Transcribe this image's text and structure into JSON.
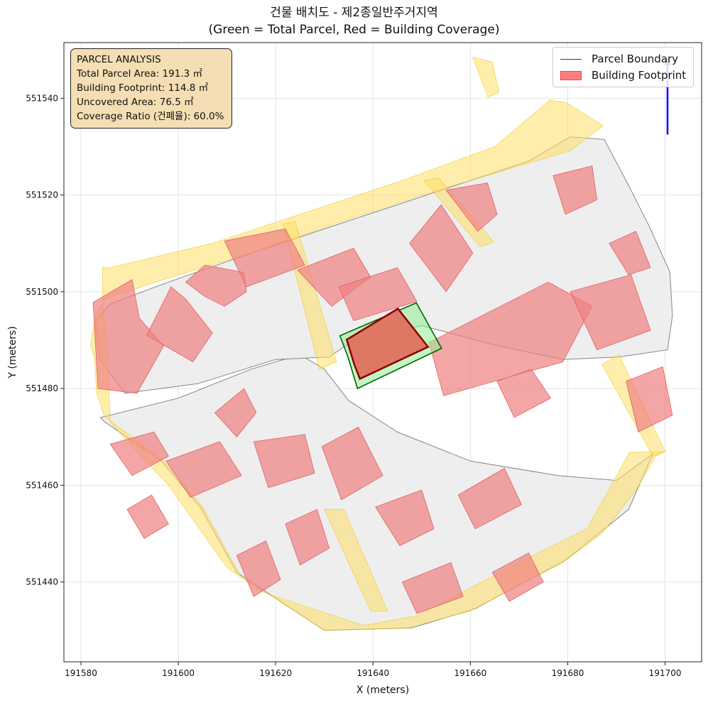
{
  "title": {
    "line1": "건물 배치도 - 제2종일반주거지역",
    "line2": "(Green = Total Parcel, Red = Building Coverage)"
  },
  "axes": {
    "xlabel": "X (meters)",
    "ylabel": "Y (meters)",
    "xlim": [
      191576.5,
      191707.5
    ],
    "ylim": [
      551423.5,
      551551.5
    ],
    "xticks": [
      191580,
      191600,
      191620,
      191640,
      191660,
      191680,
      191700
    ],
    "yticks": [
      551440,
      551460,
      551480,
      551500,
      551520,
      551540
    ],
    "grid": true
  },
  "info_box": {
    "heading": "PARCEL ANALYSIS",
    "total_parcel_area": "Total Parcel Area: 191.3 ㎡",
    "building_footprint": "Building Footprint: 114.8 ㎡",
    "uncovered_area": "Uncovered Area: 76.5 ㎡",
    "coverage_ratio": "Coverage Ratio (건폐율): 60.0%"
  },
  "legend": {
    "placement": "top-right",
    "items": [
      {
        "label": "Parcel Boundary",
        "kind": "line",
        "color": "#006400"
      },
      {
        "label": "Building Footprint",
        "kind": "patch",
        "color": "#ff0000"
      }
    ]
  },
  "colors": {
    "parcel_fill": "#90ee90",
    "parcel_edge": "#006400",
    "building_fill": "#ff0000",
    "building_edge": "#8b0000",
    "road_fill": "#ffe066",
    "neighbor_parcel_fill": "#eeeeee",
    "neighbor_parcel_edge": "#555555",
    "neighbor_building_fill": "#f08080",
    "north_arrow": "#0000ff"
  },
  "chart_data": {
    "type": "map",
    "target_parcel": {
      "area_m2": 191.3,
      "polygon": [
        [
          191633.2,
          551490.9
        ],
        [
          191648.9,
          551497.7
        ],
        [
          191654.1,
          551488.3
        ],
        [
          191636.8,
          551480.0
        ],
        [
          191635.4,
          551484.7
        ],
        [
          191634.9,
          551486.4
        ]
      ]
    },
    "target_building": {
      "area_m2": 114.8,
      "polygon": [
        [
          191634.6,
          551490.1
        ],
        [
          191645.1,
          551496.5
        ],
        [
          191651.3,
          551488.6
        ],
        [
          191637.3,
          551482.0
        ],
        [
          191636.1,
          551485.1
        ],
        [
          191635.8,
          551486.1
        ]
      ]
    },
    "roads": [
      [
        [
          191584.4,
          551505.0
        ],
        [
          191585.5,
          551504.9
        ],
        [
          191607.0,
          551510.0
        ],
        [
          191625.0,
          551516.0
        ],
        [
          191646.0,
          551523.0
        ],
        [
          191665.0,
          551530.0
        ],
        [
          191676.3,
          551539.6
        ],
        [
          191679.7,
          551539.1
        ],
        [
          191687.3,
          551534.3
        ],
        [
          191680.4,
          551529.1
        ],
        [
          191650.0,
          551520.0
        ],
        [
          191632.0,
          551514.0
        ],
        [
          191615.0,
          551508.0
        ],
        [
          191597.0,
          551502.5
        ],
        [
          191585.0,
          551498.5
        ],
        [
          191583.0,
          551495.5
        ],
        [
          191582.0,
          551489.0
        ],
        [
          191582.8,
          551486.1
        ],
        [
          191583.2,
          551479.3
        ],
        [
          191584.8,
          551474.3
        ],
        [
          191597.0,
          551465.0
        ],
        [
          191605.0,
          551455.5
        ],
        [
          191612.8,
          551441.2
        ],
        [
          191630.0,
          551430.0
        ],
        [
          191647.0,
          551430.5
        ],
        [
          191660.0,
          551434.0
        ],
        [
          191679.0,
          551444.0
        ],
        [
          191687.0,
          551450.0
        ],
        [
          191694.2,
          551459.2
        ],
        [
          191698.0,
          551466.0
        ],
        [
          191700.0,
          551467.0
        ],
        [
          191692.7,
          551466.8
        ],
        [
          191684.0,
          551451.0
        ],
        [
          191670.0,
          551444.0
        ],
        [
          191649.0,
          551433.0
        ],
        [
          191638.0,
          551431.0
        ],
        [
          191617.0,
          551438.0
        ],
        [
          191610.0,
          551443.0
        ],
        [
          191598.0,
          551460.0
        ],
        [
          191586.0,
          551473.0
        ],
        [
          191585.5,
          551486.0
        ],
        [
          191584.5,
          551498.0
        ]
      ],
      [
        [
          191621.5,
          551514.0
        ],
        [
          191624.0,
          551514.5
        ],
        [
          191632.5,
          551485.5
        ],
        [
          191629.0,
          551484.0
        ]
      ],
      [
        [
          191650.5,
          551523.0
        ],
        [
          191653.5,
          551523.5
        ],
        [
          191664.8,
          551510.3
        ],
        [
          191662.0,
          551509.3
        ]
      ],
      [
        [
          191660.5,
          551548.5
        ],
        [
          191664.5,
          551547.5
        ],
        [
          191665.9,
          551541.2
        ],
        [
          191663.6,
          551540.2
        ]
      ],
      [
        [
          191630.0,
          551455.0
        ],
        [
          191634.0,
          551455.0
        ],
        [
          191643.0,
          551434.0
        ],
        [
          191639.5,
          551434.0
        ]
      ],
      [
        [
          191687.0,
          551485.0
        ],
        [
          191690.5,
          551487.0
        ],
        [
          191700.0,
          551467.0
        ],
        [
          191697.5,
          551466.0
        ]
      ]
    ],
    "neighbor_parcels": [
      [
        [
          191584.0,
          551474.0
        ],
        [
          191600.0,
          551478.0
        ],
        [
          191615.0,
          551484.0
        ],
        [
          191625.0,
          551487.0
        ],
        [
          191630.0,
          551484.0
        ],
        [
          191635.0,
          551477.5
        ],
        [
          191645.0,
          551471.0
        ],
        [
          191660.0,
          551465.0
        ],
        [
          191678.0,
          551462.0
        ],
        [
          191690.0,
          551461.0
        ],
        [
          191697.5,
          551466.5
        ],
        [
          191692.5,
          551455.0
        ],
        [
          191679.5,
          551444.5
        ],
        [
          191661.0,
          551434.5
        ],
        [
          191648.0,
          551430.5
        ],
        [
          191630.0,
          551430.0
        ],
        [
          191612.0,
          551442.0
        ],
        [
          191604.5,
          551455.5
        ],
        [
          191596.5,
          551465.0
        ],
        [
          191585.0,
          551473.0
        ]
      ],
      [
        [
          191586.0,
          551497.5
        ],
        [
          191598.0,
          551502.0
        ],
        [
          191615.0,
          551508.0
        ],
        [
          191633.0,
          551514.0
        ],
        [
          191651.0,
          551520.0
        ],
        [
          191672.0,
          551527.0
        ],
        [
          191680.5,
          551532.0
        ],
        [
          191687.5,
          551531.5
        ],
        [
          191692.5,
          551522.0
        ],
        [
          191697.0,
          551513.0
        ],
        [
          191701.0,
          551504.0
        ],
        [
          191701.5,
          551495.0
        ],
        [
          191700.5,
          551488.0
        ],
        [
          191690.5,
          551486.5
        ],
        [
          191679.0,
          551486.0
        ],
        [
          191665.0,
          551489.0
        ],
        [
          191650.0,
          551493.0
        ],
        [
          191636.0,
          551490.0
        ],
        [
          191631.0,
          551486.5
        ],
        [
          191620.0,
          551486.0
        ],
        [
          191604.0,
          551481.0
        ],
        [
          191589.0,
          551479.0
        ],
        [
          191583.8,
          551486.0
        ],
        [
          191583.0,
          551494.0
        ]
      ]
    ],
    "neighbor_buildings": [
      [
        [
          191582.5,
          551497.8
        ],
        [
          191590.5,
          551502.5
        ],
        [
          191592.0,
          551494.5
        ],
        [
          191597.0,
          551488.8
        ],
        [
          191591.5,
          551479.0
        ],
        [
          191583.5,
          551480.0
        ]
      ],
      [
        [
          191593.5,
          551491.0
        ],
        [
          191598.5,
          551501.0
        ],
        [
          191601.5,
          551498.5
        ],
        [
          191607.0,
          551491.5
        ],
        [
          191603.0,
          551485.5
        ]
      ],
      [
        [
          191601.5,
          551502.0
        ],
        [
          191605.5,
          551505.5
        ],
        [
          191613.5,
          551504.0
        ],
        [
          191614.0,
          551500.0
        ],
        [
          191609.5,
          551497.0
        ],
        [
          191605.5,
          551499.0
        ]
      ],
      [
        [
          191609.5,
          551510.5
        ],
        [
          191622.0,
          551513.0
        ],
        [
          191626.0,
          551505.5
        ],
        [
          191614.0,
          551501.0
        ]
      ],
      [
        [
          191624.5,
          551504.5
        ],
        [
          191636.0,
          551509.0
        ],
        [
          191639.5,
          551503.0
        ],
        [
          191631.5,
          551497.0
        ]
      ],
      [
        [
          191633.0,
          551501.0
        ],
        [
          191645.0,
          551505.0
        ],
        [
          191649.0,
          551498.0
        ],
        [
          191636.0,
          551494.0
        ]
      ],
      [
        [
          191647.5,
          551510.0
        ],
        [
          191654.0,
          551518.0
        ],
        [
          191660.5,
          551508.0
        ],
        [
          191655.0,
          551500.0
        ]
      ],
      [
        [
          191655.0,
          551521.0
        ],
        [
          191663.5,
          551522.5
        ],
        [
          191665.5,
          551516.0
        ],
        [
          191661.5,
          551512.5
        ]
      ],
      [
        [
          191677.0,
          551524.0
        ],
        [
          191685.0,
          551526.0
        ],
        [
          191686.0,
          551519.0
        ],
        [
          191679.5,
          551516.0
        ]
      ],
      [
        [
          191688.5,
          551510.0
        ],
        [
          191694.0,
          551512.5
        ],
        [
          191697.0,
          551505.0
        ],
        [
          191692.5,
          551503.5
        ]
      ],
      [
        [
          191651.5,
          551489.5
        ],
        [
          191676.0,
          551502.0
        ],
        [
          191685.0,
          551497.0
        ],
        [
          191679.0,
          551485.5
        ],
        [
          191654.5,
          551478.5
        ]
      ],
      [
        [
          191665.5,
          551481.5
        ],
        [
          191672.5,
          551484.0
        ],
        [
          191676.5,
          551478.0
        ],
        [
          191669.0,
          551474.0
        ]
      ],
      [
        [
          191586.0,
          551468.5
        ],
        [
          191595.0,
          551471.0
        ],
        [
          191598.0,
          551466.0
        ],
        [
          191590.5,
          551462.0
        ]
      ],
      [
        [
          191597.5,
          551465.0
        ],
        [
          191608.5,
          551469.0
        ],
        [
          191613.0,
          551462.0
        ],
        [
          191602.5,
          551457.5
        ]
      ],
      [
        [
          191607.5,
          551475.0
        ],
        [
          191613.5,
          551480.0
        ],
        [
          191616.0,
          551475.0
        ],
        [
          191612.0,
          551470.0
        ]
      ],
      [
        [
          191615.5,
          551469.0
        ],
        [
          191626.0,
          551470.5
        ],
        [
          191628.0,
          551462.5
        ],
        [
          191618.5,
          551459.5
        ]
      ],
      [
        [
          191629.5,
          551468.0
        ],
        [
          191637.0,
          551472.0
        ],
        [
          191642.0,
          551462.0
        ],
        [
          191633.5,
          551457.0
        ]
      ],
      [
        [
          191640.5,
          551455.5
        ],
        [
          191650.0,
          551459.0
        ],
        [
          191652.5,
          551451.0
        ],
        [
          191645.5,
          551447.5
        ]
      ],
      [
        [
          191657.5,
          551458.0
        ],
        [
          191667.0,
          551463.5
        ],
        [
          191670.5,
          551456.0
        ],
        [
          191661.0,
          551451.0
        ]
      ],
      [
        [
          191612.0,
          551445.5
        ],
        [
          191618.0,
          551448.5
        ],
        [
          191621.0,
          551440.5
        ],
        [
          191615.5,
          551437.0
        ]
      ],
      [
        [
          191622.0,
          551452.0
        ],
        [
          191628.5,
          551455.0
        ],
        [
          191631.0,
          551447.0
        ],
        [
          191625.0,
          551443.5
        ]
      ],
      [
        [
          191646.0,
          551440.0
        ],
        [
          191656.0,
          551444.0
        ],
        [
          191658.5,
          551437.0
        ],
        [
          191649.0,
          551433.5
        ]
      ],
      [
        [
          191664.5,
          551442.0
        ],
        [
          191672.0,
          551446.0
        ],
        [
          191675.0,
          551440.0
        ],
        [
          191668.0,
          551436.0
        ]
      ],
      [
        [
          191589.5,
          551455.0
        ],
        [
          191594.5,
          551458.0
        ],
        [
          191598.0,
          551452.0
        ],
        [
          191593.0,
          551449.0
        ]
      ],
      [
        [
          191680.5,
          551500.0
        ],
        [
          191693.0,
          551503.5
        ],
        [
          191697.0,
          551492.0
        ],
        [
          191686.0,
          551488.0
        ]
      ],
      [
        [
          191692.0,
          551481.5
        ],
        [
          191699.5,
          551484.5
        ],
        [
          191701.5,
          551474.5
        ],
        [
          191694.5,
          551471.0
        ]
      ]
    ],
    "north_arrow": {
      "x": 191700.5,
      "y_from": 551532.5,
      "y_to": 551548.5
    }
  }
}
